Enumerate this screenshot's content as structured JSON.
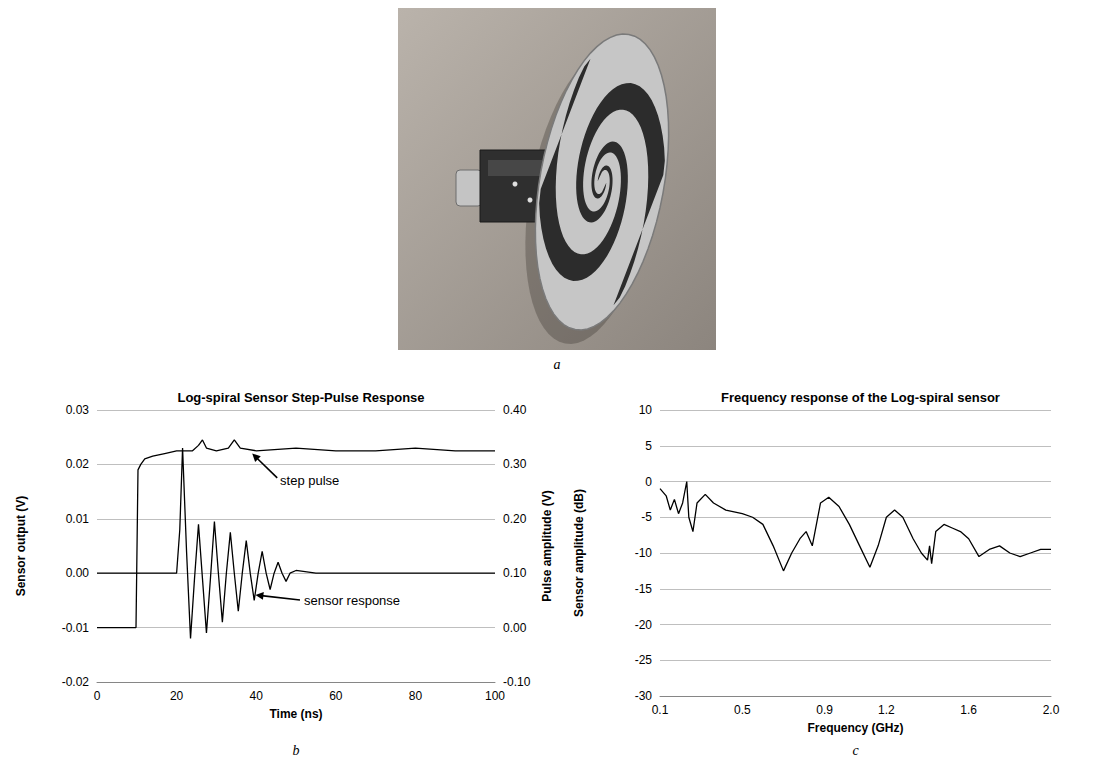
{
  "photo": {
    "label": "a"
  },
  "chart_data": [
    {
      "label": "b",
      "type": "line",
      "title": "Log-spiral Sensor Step-Pulse Response",
      "x_label": "Time (ns)",
      "y_label": "Sensor output (V)",
      "y2_label": "Pulse amplitude (V)",
      "xlim": [
        0,
        100
      ],
      "xticks": [
        0,
        20,
        40,
        60,
        80,
        100
      ],
      "ylim": [
        -0.02,
        0.03
      ],
      "yticks": [
        -0.02,
        -0.01,
        {
          "value": 0,
          "label": "0.00"
        },
        0.01,
        0.02,
        0.03
      ],
      "y2lim": [
        -0.1,
        0.4
      ],
      "y2ticks": [
        {
          "value": -0.1,
          "label": "-0.10"
        },
        {
          "value": 0,
          "label": "0.00"
        },
        {
          "value": 0.1,
          "label": "0.10"
        },
        {
          "value": 0.2,
          "label": "0.20"
        },
        {
          "value": 0.3,
          "label": "0.30"
        },
        {
          "value": 0.4,
          "label": "0.40"
        }
      ],
      "grid": true,
      "series": [
        {
          "axis": "y2",
          "color": "#000000",
          "x": [
            0,
            9.8,
            10.3,
            11,
            12,
            14,
            17,
            20,
            24,
            25.5,
            26.5,
            27.5,
            30,
            33,
            34.5,
            36,
            40,
            50,
            60,
            70,
            80,
            90,
            100
          ],
          "values": [
            0,
            0,
            0.29,
            0.3,
            0.31,
            0.315,
            0.32,
            0.325,
            0.325,
            0.335,
            0.345,
            0.33,
            0.325,
            0.33,
            0.345,
            0.33,
            0.325,
            0.33,
            0.325,
            0.325,
            0.33,
            0.325,
            0.325
          ]
        },
        {
          "color": "#000000",
          "x": [
            0,
            20,
            20.8,
            21.5,
            22.5,
            23.5,
            24.5,
            25.5,
            26.5,
            27.5,
            28.5,
            29.5,
            30.5,
            31.5,
            32.5,
            33.5,
            34.5,
            35.5,
            36.5,
            37.5,
            38.5,
            39.5,
            40.5,
            41.5,
            42.5,
            43.5,
            44.5,
            45.5,
            46.5,
            47.5,
            48.5,
            50,
            55,
            60,
            70,
            80,
            90,
            100
          ],
          "values": [
            0,
            0,
            0.008,
            0.023,
            0.004,
            -0.012,
            -0.001,
            0.009,
            -0.001,
            -0.011,
            -0.001,
            0.0095,
            0,
            -0.009,
            0,
            0.0075,
            0,
            -0.007,
            0,
            0.006,
            0,
            -0.005,
            0,
            0.004,
            0,
            -0.003,
            0,
            0.002,
            0,
            -0.0015,
            0,
            0.0005,
            0,
            0,
            0,
            0,
            0,
            0
          ]
        }
      ],
      "annotations": [
        {
          "text": "step pulse",
          "x": 46,
          "y": 0.27,
          "axis": "y2",
          "arrow_to": [
            39,
            0.32
          ]
        },
        {
          "text": "sensor response",
          "x": 52,
          "y": -0.005,
          "arrow_to": [
            39.8,
            -0.004
          ]
        }
      ]
    },
    {
      "label": "c",
      "type": "line",
      "title": "Frequency response of the Log-spiral sensor",
      "x_label": "Frequency (GHz)",
      "y_label": "Sensor amplitude (dB)",
      "xlim": [
        0.1,
        2
      ],
      "xticks": [
        0.1,
        0.5,
        0.9,
        1.2,
        1.6,
        {
          "value": 2,
          "label": "2.0"
        }
      ],
      "ylim": [
        -30,
        10
      ],
      "yticks": [
        -30,
        -25,
        -20,
        -15,
        -10,
        -5,
        0,
        5,
        10
      ],
      "grid": true,
      "series": [
        {
          "color": "#000000",
          "x": [
            0.1,
            0.13,
            0.15,
            0.17,
            0.19,
            0.21,
            0.23,
            0.24,
            0.26,
            0.28,
            0.32,
            0.36,
            0.42,
            0.5,
            0.55,
            0.6,
            0.65,
            0.7,
            0.74,
            0.78,
            0.81,
            0.84,
            0.88,
            0.92,
            0.97,
            1.02,
            1.07,
            1.12,
            1.16,
            1.2,
            1.24,
            1.28,
            1.33,
            1.37,
            1.4,
            1.41,
            1.42,
            1.44,
            1.48,
            1.52,
            1.56,
            1.6,
            1.65,
            1.7,
            1.75,
            1.8,
            1.85,
            1.9,
            1.95,
            2
          ],
          "values": [
            -1,
            -2,
            -4,
            -2.5,
            -4.5,
            -3,
            0,
            -5,
            -7,
            -3,
            -1.8,
            -3,
            -4,
            -4.5,
            -5,
            -6,
            -9,
            -12.5,
            -10,
            -8,
            -7,
            -9,
            -3,
            -2.2,
            -3.5,
            -6,
            -9,
            -12,
            -9,
            -5,
            -4,
            -5,
            -8,
            -10,
            -11,
            -9,
            -11.5,
            -7,
            -6,
            -6.5,
            -7,
            -8,
            -10.5,
            -9.5,
            -9,
            -10,
            -10.5,
            -10,
            -9.5,
            -9.5
          ]
        }
      ]
    }
  ]
}
